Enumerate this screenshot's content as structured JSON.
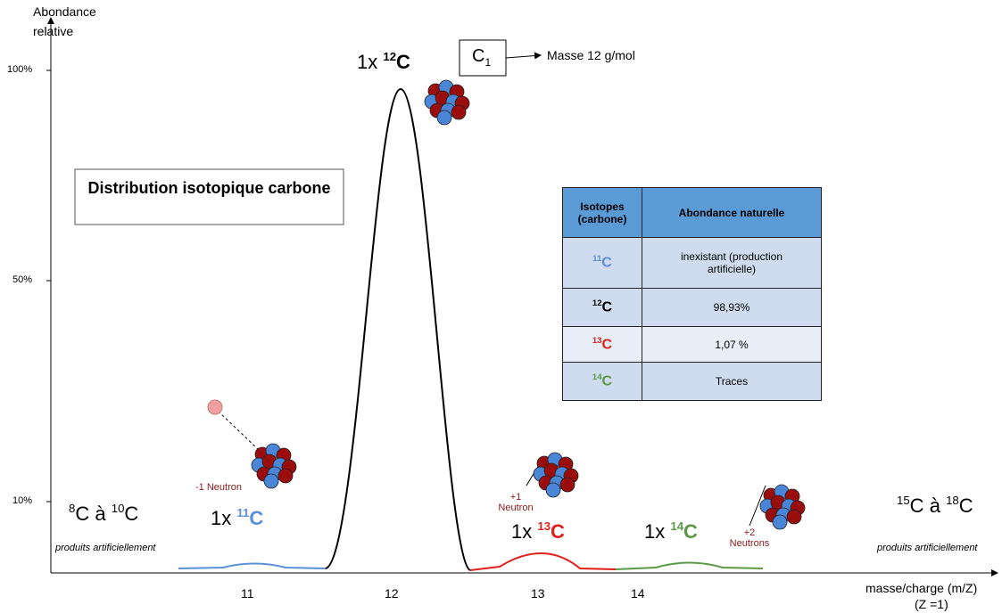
{
  "y_axis": {
    "label_lines": [
      "Abondance",
      "relative"
    ],
    "ticks": [
      "100%",
      "50%",
      "10%"
    ]
  },
  "x_axis": {
    "label": "masse/charge (m/Z)",
    "sublabel": "(Z =1)",
    "ticks": [
      "11",
      "12",
      "13",
      "14"
    ]
  },
  "title": "Distribution isotopique carbone",
  "formula_box": {
    "symbol": "C",
    "subscript": "1",
    "note": "Masse 12 g/mol"
  },
  "peaks": [
    {
      "prefix": "1x",
      "mass": "11",
      "symbol": "C"
    },
    {
      "prefix": "1x",
      "mass": "12",
      "symbol": "C"
    },
    {
      "prefix": "1x",
      "mass": "13",
      "symbol": "C"
    },
    {
      "prefix": "1x",
      "mass": "14",
      "symbol": "C"
    }
  ],
  "ranges": [
    {
      "from_mass": "8",
      "from_symbol": "C",
      "joiner": "à",
      "to_mass": "10",
      "to_symbol": "C",
      "note": "produits artificiellement"
    },
    {
      "from_mass": "15",
      "from_symbol": "C",
      "joiner": "à",
      "to_mass": "18",
      "to_symbol": "C",
      "note": "produits artificiellement"
    }
  ],
  "neutron_labels": [
    "-1 Neutron",
    "+1 Neutron",
    "+2 Neutrons"
  ],
  "table": {
    "headers": [
      "Isotopes (carbone)",
      "Abondance naturelle"
    ],
    "rows": [
      {
        "isotope": {
          "mass": "11",
          "symbol": "C"
        },
        "abundance": "inexistant (production artificielle)"
      },
      {
        "isotope": {
          "mass": "12",
          "symbol": "C"
        },
        "abundance": "98,93%"
      },
      {
        "isotope": {
          "mass": "13",
          "symbol": "C"
        },
        "abundance": "1,07 %"
      },
      {
        "isotope": {
          "mass": "14",
          "symbol": "C"
        },
        "abundance": "Traces"
      }
    ]
  }
}
